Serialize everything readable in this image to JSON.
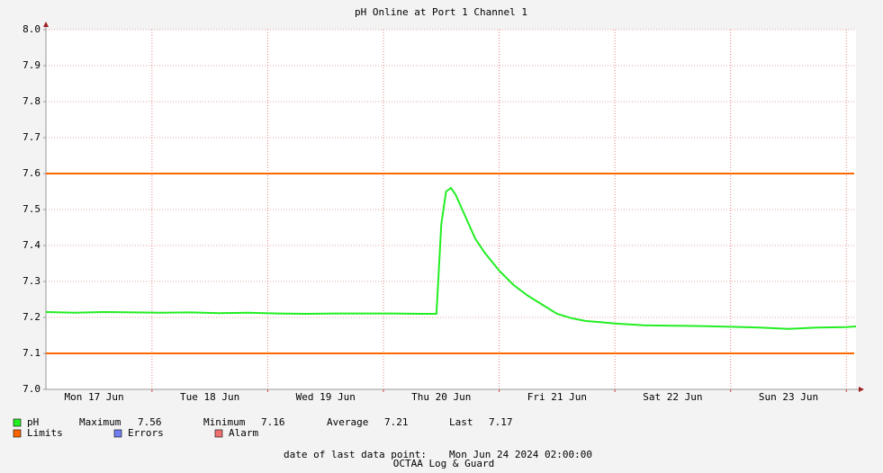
{
  "chart_data": {
    "type": "line",
    "title": "pH Online at Port 1 Channel 1",
    "xlim": [
      "2024-06-17T02:00",
      "2024-06-24T02:00"
    ],
    "xticks": [
      {
        "value": "2024-06-17T12:00",
        "label": "Mon 17 Jun"
      },
      {
        "value": "2024-06-18T12:00",
        "label": "Tue 18 Jun"
      },
      {
        "value": "2024-06-19T12:00",
        "label": "Wed 19 Jun"
      },
      {
        "value": "2024-06-20T12:00",
        "label": "Thu 20 Jun"
      },
      {
        "value": "2024-06-21T12:00",
        "label": "Fri 21 Jun"
      },
      {
        "value": "2024-06-22T12:00",
        "label": "Sat 22 Jun"
      },
      {
        "value": "2024-06-23T12:00",
        "label": "Sun 23 Jun"
      }
    ],
    "xgrid": [
      "2024-06-18T00:00",
      "2024-06-19T00:00",
      "2024-06-20T00:00",
      "2024-06-21T00:00",
      "2024-06-22T00:00",
      "2024-06-23T00:00",
      "2024-06-24T00:00"
    ],
    "ylim": [
      7.0,
      8.0
    ],
    "yticks": [
      {
        "value": 7.0,
        "label": "7.0"
      },
      7.1,
      7.2,
      7.3,
      7.4,
      7.5,
      7.6,
      7.7,
      7.8,
      7.9,
      {
        "value": 8.0,
        "label": "8.0"
      }
    ],
    "grid": true,
    "series": [
      {
        "name": "pH",
        "color": "#22ee22",
        "x": [
          "2024-06-17T02:00",
          "2024-06-17T08:00",
          "2024-06-17T14:00",
          "2024-06-17T20:00",
          "2024-06-18T02:00",
          "2024-06-18T08:00",
          "2024-06-18T14:00",
          "2024-06-18T20:00",
          "2024-06-19T02:00",
          "2024-06-19T08:00",
          "2024-06-19T14:00",
          "2024-06-19T20:00",
          "2024-06-20T02:00",
          "2024-06-20T08:00",
          "2024-06-20T11:00",
          "2024-06-20T12:00",
          "2024-06-20T13:00",
          "2024-06-20T14:00",
          "2024-06-20T15:00",
          "2024-06-20T17:00",
          "2024-06-20T19:00",
          "2024-06-20T21:00",
          "2024-06-21T00:00",
          "2024-06-21T03:00",
          "2024-06-21T06:00",
          "2024-06-21T09:00",
          "2024-06-21T12:00",
          "2024-06-21T15:00",
          "2024-06-21T18:00",
          "2024-06-21T21:00",
          "2024-06-22T00:00",
          "2024-06-22T06:00",
          "2024-06-22T12:00",
          "2024-06-22T18:00",
          "2024-06-23T00:00",
          "2024-06-23T06:00",
          "2024-06-23T12:00",
          "2024-06-23T18:00",
          "2024-06-24T00:00",
          "2024-06-24T02:00"
        ],
        "values": [
          7.215,
          7.213,
          7.215,
          7.214,
          7.213,
          7.214,
          7.212,
          7.213,
          7.211,
          7.21,
          7.211,
          7.211,
          7.211,
          7.21,
          7.21,
          7.46,
          7.55,
          7.56,
          7.54,
          7.48,
          7.42,
          7.38,
          7.33,
          7.29,
          7.26,
          7.235,
          7.21,
          7.198,
          7.19,
          7.187,
          7.183,
          7.178,
          7.177,
          7.176,
          7.174,
          7.172,
          7.168,
          7.172,
          7.173,
          7.175
        ],
        "stats": [
          {
            "label": "Maximum",
            "value": 7.56
          },
          {
            "label": "Minimum",
            "value": 7.16
          },
          {
            "label": "Average",
            "value": 7.21
          },
          {
            "label": "Last",
            "value": 7.17
          }
        ]
      }
    ],
    "limits": {
      "name": "Limits",
      "color": "#ff6600",
      "values": [
        7.6,
        7.1
      ]
    },
    "legend_extra": [
      {
        "name": "Errors",
        "color": "#7080f0"
      },
      {
        "name": "Alarm",
        "color": "#f07070"
      }
    ],
    "footer": {
      "label": "date of last data point:",
      "value": "Mon Jun 24 2024 02:00:00"
    },
    "watermark": "OCTAA Log & Guard"
  }
}
